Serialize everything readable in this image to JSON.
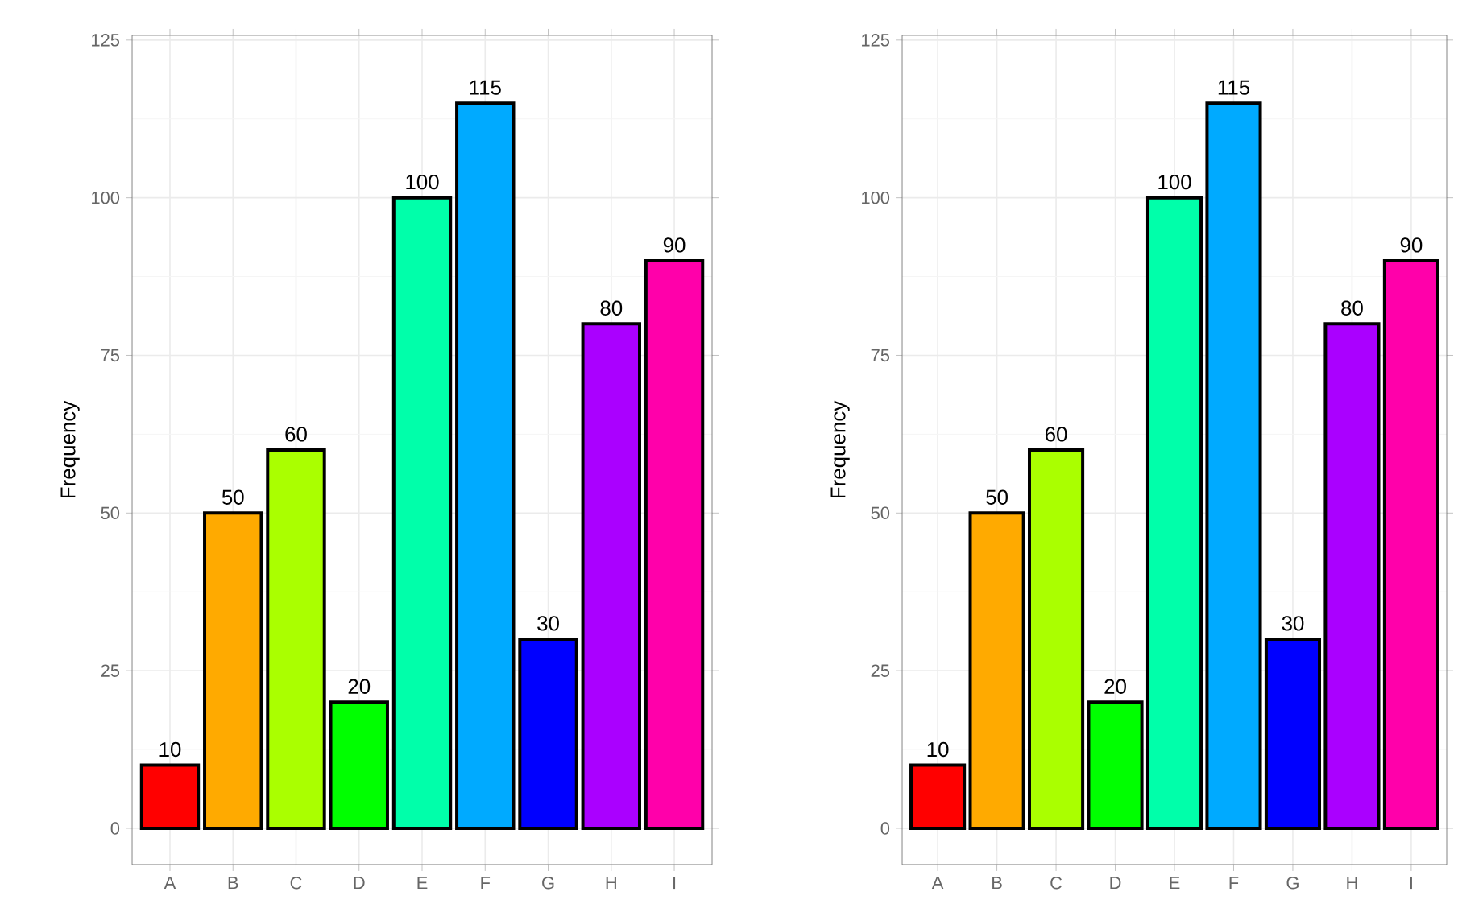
{
  "chart_data": [
    {
      "type": "bar",
      "ylabel": "Frequency",
      "categories": [
        "A",
        "B",
        "C",
        "D",
        "E",
        "F",
        "G",
        "H",
        "I"
      ],
      "values": [
        10,
        50,
        60,
        20,
        100,
        115,
        30,
        80,
        90
      ],
      "colors": [
        "#ff0000",
        "#ffaa00",
        "#aaff00",
        "#00ff00",
        "#00ffaa",
        "#00aaff",
        "#0000ff",
        "#aa00ff",
        "#ff00aa"
      ],
      "ylim": [
        -5.75,
        125.75
      ],
      "yticks": [
        0,
        25,
        50,
        75,
        100,
        125
      ],
      "grid": true,
      "data_labels": true
    },
    {
      "type": "bar",
      "ylabel": "Frequency",
      "categories": [
        "A",
        "B",
        "C",
        "D",
        "E",
        "F",
        "G",
        "H",
        "I"
      ],
      "values": [
        10,
        50,
        60,
        20,
        100,
        115,
        30,
        80,
        90
      ],
      "colors": [
        "#ff0000",
        "#ffaa00",
        "#aaff00",
        "#00ff00",
        "#00ffaa",
        "#00aaff",
        "#0000ff",
        "#aa00ff",
        "#ff00aa"
      ],
      "ylim": [
        -5.75,
        125.75
      ],
      "yticks": [
        0,
        25,
        50,
        75,
        100,
        125
      ],
      "grid": true,
      "data_labels": true
    }
  ]
}
